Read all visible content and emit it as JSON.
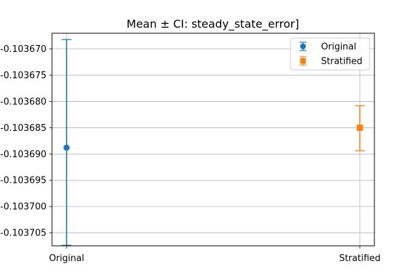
{
  "chart_data": {
    "type": "scatter",
    "title": "Mean ± CI: steady_state_error]",
    "xlabel": "",
    "ylabel": "",
    "categories": [
      "Original",
      "Stratified"
    ],
    "y_inverted": true,
    "ylim": [
      -0.103667,
      -0.1037075
    ],
    "yticks": [
      -0.10367,
      -0.103675,
      -0.10368,
      -0.103685,
      -0.10369,
      -0.103695,
      -0.1037,
      -0.103705
    ],
    "ytick_labels": [
      "-0.103670",
      "-0.103675",
      "-0.103680",
      "-0.103685",
      "-0.103690",
      "-0.103695",
      "-0.103700",
      "-0.103705"
    ],
    "grid": true,
    "legend_position": "top-right",
    "series": [
      {
        "name": "Original",
        "category": "Original",
        "mean": -0.1036888,
        "ci_low": -0.1037074,
        "ci_high": -0.1036682,
        "color": "#1f77b4",
        "marker": "circle"
      },
      {
        "name": "Stratified",
        "category": "Stratified",
        "mean": -0.103685,
        "ci_low": -0.1036894,
        "ci_high": -0.1036808,
        "color": "#ff7f0e",
        "marker": "square"
      }
    ]
  }
}
